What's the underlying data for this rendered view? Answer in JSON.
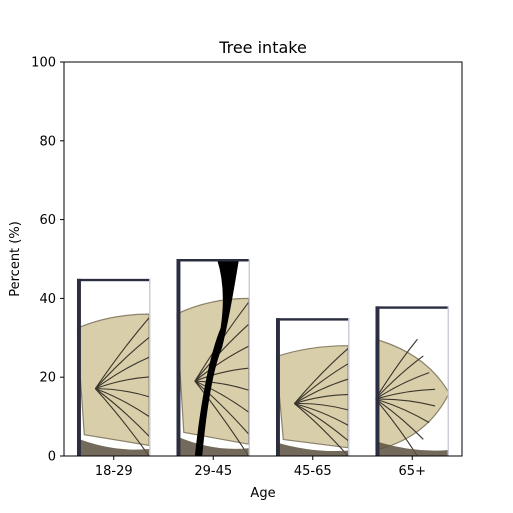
{
  "chart_data": {
    "type": "bar",
    "title": "Tree intake",
    "xlabel": "Age",
    "ylabel": "Percent (%)",
    "categories": [
      "18-29",
      "29-45",
      "45-65",
      "65+"
    ],
    "values": [
      45,
      50,
      35,
      38
    ],
    "ylim": [
      0,
      100
    ],
    "yticks": [
      0,
      20,
      40,
      60,
      80,
      100
    ],
    "grid": false,
    "legend": "none",
    "bar_style": "wood-slice image fill",
    "colors": {
      "wood": "#d9ceaa",
      "wood_dark": "#8c826a",
      "bark": "#5a5040",
      "vein": "#3a362c",
      "frame": "#2b2d40",
      "trunk": "#000000"
    }
  }
}
